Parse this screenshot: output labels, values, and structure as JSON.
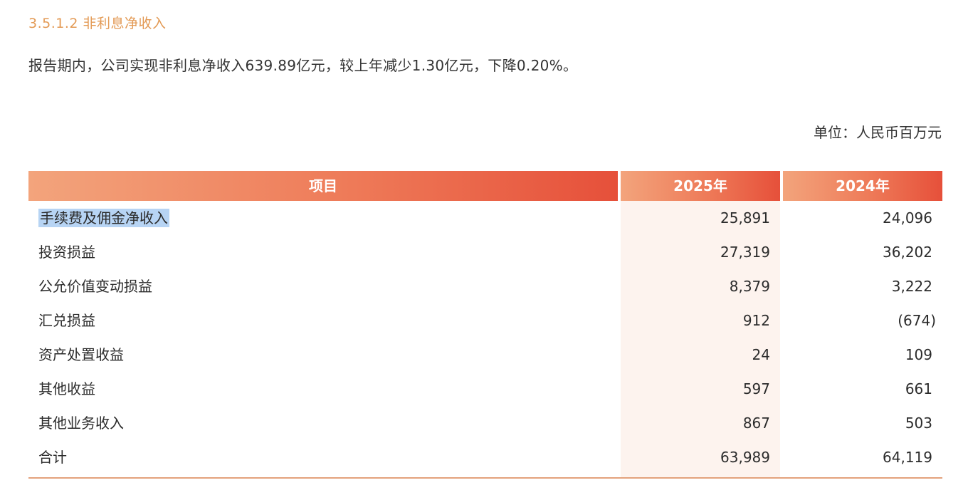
{
  "section": {
    "title": "3.5.1.2 非利息净收入"
  },
  "summary_text": "报告期内，公司实现非利息净收入639.89亿元，较上年减少1.30亿元，下降0.20%。",
  "unit_text": "单位：人民币百万元",
  "table": {
    "headers": [
      "项目",
      "2025年",
      "2024年"
    ],
    "rows": [
      {
        "item": "手续费及佣金净收入",
        "y2025": "25,891",
        "y2024": "24,096"
      },
      {
        "item": "投资损益",
        "y2025": "27,319",
        "y2024": "36,202"
      },
      {
        "item": "公允价值变动损益",
        "y2025": "8,379",
        "y2024": "3,222"
      },
      {
        "item": "汇兑损益",
        "y2025": "912",
        "y2024": "(674)"
      },
      {
        "item": "资产处置收益",
        "y2025": "24",
        "y2024": "109"
      },
      {
        "item": "其他收益",
        "y2025": "597",
        "y2024": "661"
      },
      {
        "item": "其他业务收入",
        "y2025": "867",
        "y2024": "503"
      },
      {
        "item": "合计",
        "y2025": "63,989",
        "y2024": "64,119"
      }
    ]
  },
  "colors": {
    "title": "#e39a55",
    "header_start": "#f3a47c",
    "header_end": "#e6503a",
    "column_shade": "#fdf3ee",
    "selection": "#b7d4f4",
    "rule": "#e3a27c"
  }
}
